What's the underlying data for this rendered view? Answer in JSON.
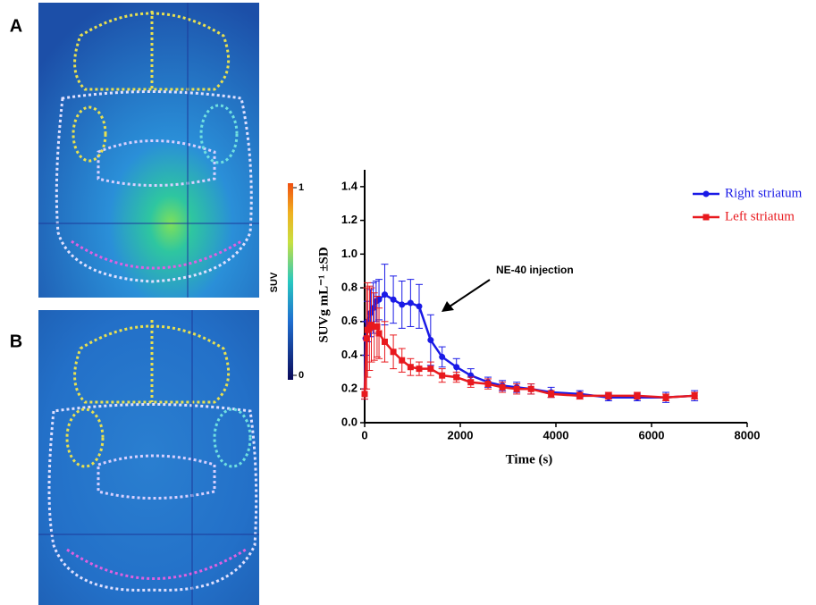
{
  "panels": {
    "a": "A",
    "b": "B"
  },
  "colorbar": {
    "title": "SUV",
    "ticks": [
      0,
      1
    ],
    "lim": [
      0,
      1
    ]
  },
  "chart_data": {
    "type": "line",
    "xlabel": "Time (s)",
    "ylabel": "SUVg mL⁻¹ ±SD",
    "annotation": "NE-40 injection",
    "xlim": [
      0,
      8000
    ],
    "xticks": [
      0,
      2000,
      4000,
      6000,
      8000
    ],
    "ylim": [
      0,
      1.5
    ],
    "yticks": [
      {
        "value": 0,
        "label": "0.0"
      },
      0.2,
      0.4,
      0.6,
      0.8,
      {
        "value": 1,
        "label": "1.0"
      },
      1.2,
      1.4
    ],
    "legend": "upper right",
    "series": [
      {
        "name": "Right striatum",
        "color": "#1a1ae6",
        "marker": "circle",
        "x": [
          0,
          20,
          60,
          120,
          180,
          240,
          300,
          420,
          600,
          780,
          960,
          1140,
          1380,
          1620,
          1920,
          2220,
          2580,
          2880,
          3180,
          3480,
          3900,
          4500,
          5100,
          5700,
          6300,
          6900
        ],
        "values": [
          0.17,
          0.5,
          0.6,
          0.65,
          0.68,
          0.72,
          0.73,
          0.76,
          0.73,
          0.7,
          0.71,
          0.69,
          0.49,
          0.39,
          0.33,
          0.28,
          0.24,
          0.22,
          0.21,
          0.2,
          0.18,
          0.17,
          0.15,
          0.15,
          0.15,
          0.16
        ],
        "errors": [
          0.03,
          0.1,
          0.12,
          0.14,
          0.15,
          0.12,
          0.12,
          0.18,
          0.14,
          0.14,
          0.14,
          0.13,
          0.15,
          0.06,
          0.05,
          0.04,
          0.03,
          0.03,
          0.03,
          0.03,
          0.03,
          0.02,
          0.02,
          0.02,
          0.03,
          0.03
        ]
      },
      {
        "name": "Left striatum",
        "color": "#e8191e",
        "marker": "square",
        "x": [
          0,
          40,
          60,
          100,
          140,
          200,
          260,
          300,
          420,
          600,
          780,
          960,
          1140,
          1380,
          1620,
          1920,
          2220,
          2580,
          2880,
          3180,
          3480,
          3900,
          4500,
          5100,
          5700,
          6300,
          6900
        ],
        "values": [
          0.17,
          0.5,
          0.55,
          0.56,
          0.58,
          0.57,
          0.57,
          0.53,
          0.48,
          0.42,
          0.37,
          0.33,
          0.32,
          0.32,
          0.28,
          0.27,
          0.24,
          0.23,
          0.21,
          0.2,
          0.2,
          0.17,
          0.16,
          0.16,
          0.16,
          0.15,
          0.16
        ],
        "errors": [
          0.03,
          0.3,
          0.28,
          0.25,
          0.22,
          0.2,
          0.18,
          0.15,
          0.12,
          0.1,
          0.07,
          0.05,
          0.04,
          0.04,
          0.04,
          0.03,
          0.03,
          0.03,
          0.03,
          0.03,
          0.03,
          0.02,
          0.02,
          0.02,
          0.02,
          0.02,
          0.02
        ]
      }
    ]
  }
}
